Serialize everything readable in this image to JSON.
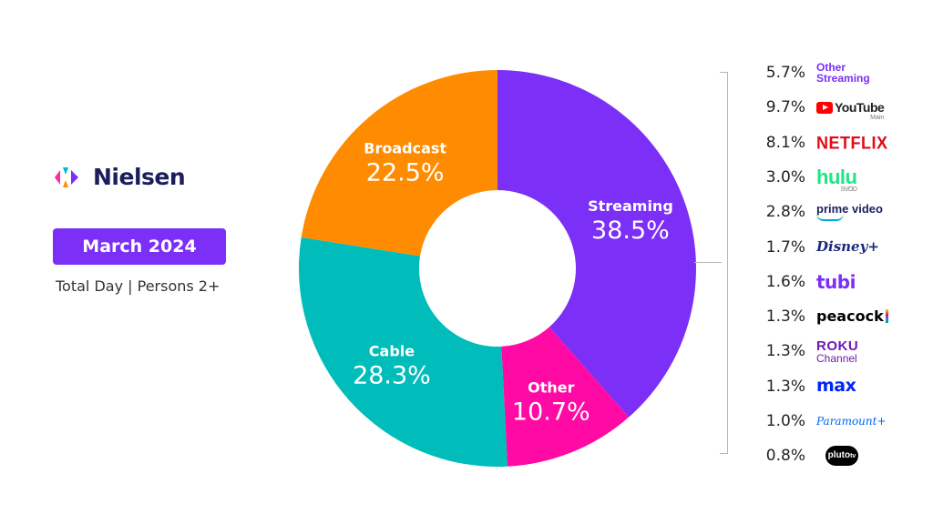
{
  "brand": {
    "name": "Nielsen",
    "logo_colors": [
      "#00b9c6",
      "#ff2ba1",
      "#ff8c00",
      "#7b2ff7"
    ]
  },
  "header": {
    "date": "March 2024",
    "subtitle": "Total Day | Persons 2+"
  },
  "chart_data": {
    "type": "pie",
    "donut": true,
    "slices": [
      {
        "label": "Streaming",
        "value": 38.5,
        "display": "38.5%",
        "color": "#7b2ff7"
      },
      {
        "label": "Other",
        "value": 10.7,
        "display": "10.7%",
        "color": "#ff0aa4"
      },
      {
        "label": "Cable",
        "value": 28.3,
        "display": "28.3%",
        "color": "#00bdbb"
      },
      {
        "label": "Broadcast",
        "value": 22.5,
        "display": "22.5%",
        "color": "#ff8c00"
      }
    ],
    "streaming_breakdown": [
      {
        "value": "5.7%",
        "brand": "Other",
        "brand2": "Streaming",
        "color": "#7b2ff7",
        "icon": "other-streaming-text"
      },
      {
        "value": "9.7%",
        "brand": "YouTube",
        "sub": "Main",
        "color": "#222222",
        "icon": "youtube-play-icon"
      },
      {
        "value": "8.1%",
        "brand": "NETFLIX",
        "color": "#e50914",
        "icon": "netflix-wordmark"
      },
      {
        "value": "3.0%",
        "brand": "hulu",
        "sub": "SVOD",
        "color": "#1ce783",
        "icon": "hulu-wordmark"
      },
      {
        "value": "2.8%",
        "brand": "prime video",
        "color": "#1a1f5c",
        "icon": "prime-video-wordmark"
      },
      {
        "value": "1.7%",
        "brand": "Disney+",
        "color": "#1a2a7a",
        "icon": "disney-plus-wordmark"
      },
      {
        "value": "1.6%",
        "brand": "tubi",
        "color": "#7b2ff7",
        "icon": "tubi-wordmark"
      },
      {
        "value": "1.3%",
        "brand": "peacock",
        "color": "#000000",
        "icon": "peacock-wordmark"
      },
      {
        "value": "1.3%",
        "brand": "Roku",
        "brand2": "Channel",
        "color": "#6f1ab1",
        "icon": "roku-channel-wordmark"
      },
      {
        "value": "1.3%",
        "brand": "max",
        "color": "#0025ff",
        "icon": "max-wordmark"
      },
      {
        "value": "1.0%",
        "brand": "Paramount+",
        "color": "#0064ff",
        "icon": "paramount-plus-wordmark"
      },
      {
        "value": "0.8%",
        "brand": "pluto",
        "brand2": "tv",
        "color": "#000000",
        "icon": "pluto-tv-badge"
      }
    ]
  }
}
